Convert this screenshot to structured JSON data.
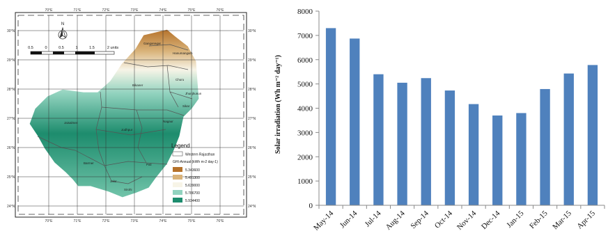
{
  "map": {
    "longitude_labels": [
      "70°E",
      "71°E",
      "72°E",
      "73°E",
      "74°E",
      "75°E",
      "76°E"
    ],
    "latitude_labels": [
      "30°N",
      "29°N",
      "28°N",
      "27°N",
      "26°N",
      "25°N",
      "24°N"
    ],
    "north_arrow": "N",
    "scale_bar": {
      "ticks": [
        "0.5",
        "0",
        "0.5",
        "1",
        "1.5",
        "2 units"
      ]
    },
    "district_labels": [
      "Ganganagar",
      "Hanumangarh",
      "Bikaner",
      "Churu",
      "Jhunjhunun",
      "Sikar",
      "Nagaur",
      "Jaisalmer",
      "Jodhpur",
      "Barmer",
      "Pali",
      "Jalor",
      "Sirohi"
    ],
    "legend": {
      "title": "Legend",
      "boundary_label": "Western Rajasthan",
      "variable_label": "GHI-Annual (kWh m-2 day-1)",
      "classes": [
        {
          "label": "5.343600",
          "color": "#b5722b"
        },
        {
          "label": "5.491300",
          "color": "#d9b37a"
        },
        {
          "label": "5.639000",
          "color": "#f7f4e7"
        },
        {
          "label": "5.786700",
          "color": "#92d3bf"
        },
        {
          "label": "5.934400",
          "color": "#1d8c6d"
        }
      ]
    }
  },
  "chart_data": {
    "type": "bar",
    "categories": [
      "May-14",
      "Jun-14",
      "Jul-14",
      "Aug-14",
      "Sep-14",
      "Oct-14",
      "Nov-14",
      "Dec-14",
      "Jan-15",
      "Feb-15",
      "Mar-15",
      "Apr-15"
    ],
    "values": [
      7300,
      6870,
      5400,
      5050,
      5240,
      4730,
      4170,
      3700,
      3800,
      4790,
      5430,
      5780
    ],
    "ylabel": "Solar irradiation (Wh m⁻² day⁻¹)",
    "ylim": [
      0,
      8000
    ],
    "yticks": [
      "0",
      "1000",
      "2000",
      "3000",
      "4000",
      "5000",
      "6000",
      "7000",
      "8000"
    ],
    "bar_color": "#4f81bd",
    "grid": false
  }
}
